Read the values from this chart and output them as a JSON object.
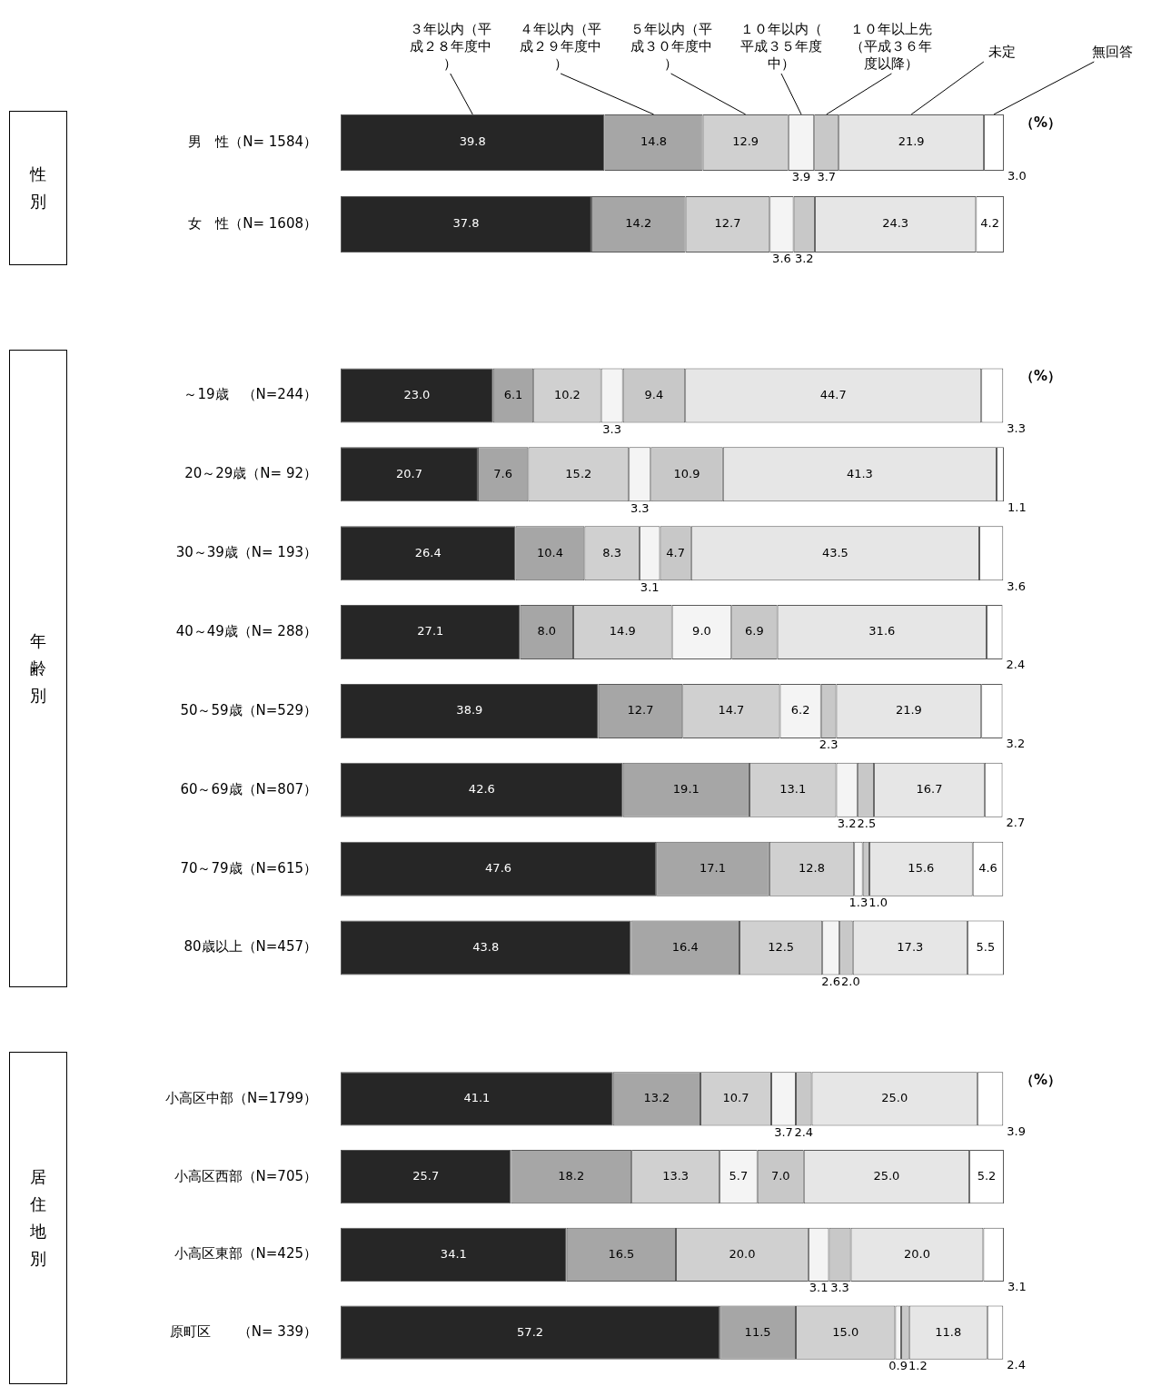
{
  "chart_data": [
    {
      "type": "bar",
      "orientation": "horizontal",
      "stacked": true,
      "legend": "top",
      "tick_labels": "y",
      "ylabel": "性別",
      "annotations": [
        "（%）"
      ],
      "categories": [
        "男　性（N= 1584）",
        "女　性（N= 1608）"
      ],
      "series": [
        {
          "name": "３年以内（平成２８年度中）",
          "color": "#262626",
          "values": [
            39.8,
            37.8
          ],
          "value_labels": [
            "39.8",
            "37.8"
          ]
        },
        {
          "name": "４年以内（平成２９年度中）",
          "color": "#a6a6a6",
          "values": [
            14.8,
            14.2
          ],
          "value_labels": [
            "14.8",
            "14.2"
          ]
        },
        {
          "name": "５年以内（平成３０年度中）",
          "color": "#d0d0d0",
          "values": [
            12.9,
            12.7
          ],
          "value_labels": [
            "12.9",
            "12.7"
          ]
        },
        {
          "name": "１０年以内（平成３５年度中）",
          "color": "#f4f4f4",
          "values": [
            3.9,
            3.6
          ],
          "value_labels": [
            "3.9",
            "3.6"
          ]
        },
        {
          "name": "１０年以上先（平成３６年度以降）",
          "color": "#c8c8c8",
          "values": [
            3.7,
            3.2
          ],
          "value_labels": [
            "3.7",
            "3.2"
          ]
        },
        {
          "name": "未定",
          "color": "#e6e6e6",
          "values": [
            21.9,
            24.3
          ],
          "value_labels": [
            "21.9",
            "24.3"
          ]
        },
        {
          "name": "無回答",
          "color": "#ffffff",
          "values": [
            3.0,
            4.2
          ],
          "value_labels": [
            "3.0",
            "4.2"
          ]
        }
      ]
    },
    {
      "type": "bar",
      "orientation": "horizontal",
      "stacked": true,
      "tick_labels": "y",
      "ylabel": "年齢別",
      "annotations": [
        "（%）"
      ],
      "categories": [
        "～19歳　（N=244）",
        "20～29歳（N= 92）",
        "30～39歳（N= 193）",
        "40～49歳（N= 288）",
        "50～59歳（N=529）",
        "60～69歳（N=807）",
        "70～79歳（N=615）",
        "80歳以上（N=457）"
      ],
      "series": [
        {
          "color": "#262626",
          "values": [
            23.0,
            20.7,
            26.4,
            27.1,
            38.9,
            42.6,
            47.6,
            43.8
          ],
          "value_labels": [
            "23.0",
            "20.7",
            "26.4",
            "27.1",
            "38.9",
            "42.6",
            "47.6",
            "43.8"
          ]
        },
        {
          "color": "#a6a6a6",
          "values": [
            6.1,
            7.6,
            10.4,
            8.0,
            12.7,
            19.1,
            17.1,
            16.4
          ],
          "value_labels": [
            "6.1",
            "7.6",
            "10.4",
            "8.0",
            "12.7",
            "19.1",
            "17.1",
            "16.4"
          ]
        },
        {
          "color": "#d0d0d0",
          "values": [
            10.2,
            15.2,
            8.3,
            14.9,
            14.7,
            13.1,
            12.8,
            12.5
          ],
          "value_labels": [
            "10.2",
            "15.2",
            "8.3",
            "14.9",
            "14.7",
            "13.1",
            "12.8",
            "12.5"
          ]
        },
        {
          "color": "#f4f4f4",
          "values": [
            3.3,
            3.3,
            3.1,
            9.0,
            6.2,
            3.2,
            1.3,
            2.6
          ],
          "value_labels": [
            "3.3",
            "3.3",
            "3.1",
            "9.0",
            "6.2",
            "3.2",
            "1.3",
            "2.6"
          ]
        },
        {
          "color": "#c8c8c8",
          "values": [
            9.4,
            10.9,
            4.7,
            6.9,
            2.3,
            2.5,
            1.0,
            2.0
          ],
          "value_labels": [
            "9.4",
            "10.9",
            "4.7",
            "6.9",
            "2.3",
            "2.5",
            "1.0",
            "2.0"
          ]
        },
        {
          "color": "#e6e6e6",
          "values": [
            44.7,
            41.3,
            43.5,
            31.6,
            21.9,
            16.7,
            15.6,
            17.3
          ],
          "value_labels": [
            "44.7",
            "41.3",
            "43.5",
            "31.6",
            "21.9",
            "16.7",
            "15.6",
            "17.3"
          ]
        },
        {
          "color": "#ffffff",
          "values": [
            3.3,
            1.1,
            3.6,
            2.4,
            3.2,
            2.7,
            4.6,
            5.5
          ],
          "value_labels": [
            "3.3",
            "1.1",
            "3.6",
            "2.4",
            "3.2",
            "2.7",
            "4.6",
            "5.5"
          ]
        }
      ]
    },
    {
      "type": "bar",
      "orientation": "horizontal",
      "stacked": true,
      "tick_labels": "y",
      "ylabel": "居住地別",
      "annotations": [
        "（%）"
      ],
      "categories": [
        "小高区中部（N=1799）",
        "小高区西部（N=705）",
        "小高区東部（N=425）",
        "原町区　　（N= 339）"
      ],
      "series": [
        {
          "color": "#262626",
          "values": [
            41.1,
            25.7,
            34.1,
            57.2
          ],
          "value_labels": [
            "41.1",
            "25.7",
            "34.1",
            "57.2"
          ]
        },
        {
          "color": "#a6a6a6",
          "values": [
            13.2,
            18.2,
            16.5,
            11.5
          ],
          "value_labels": [
            "13.2",
            "18.2",
            "16.5",
            "11.5"
          ]
        },
        {
          "color": "#d0d0d0",
          "values": [
            10.7,
            13.3,
            20.0,
            15.0
          ],
          "value_labels": [
            "10.7",
            "13.3",
            "20.0",
            "15.0"
          ]
        },
        {
          "color": "#f4f4f4",
          "values": [
            3.7,
            5.7,
            3.1,
            0.9
          ],
          "value_labels": [
            "3.7",
            "5.7",
            "3.1",
            "0.9"
          ]
        },
        {
          "color": "#c8c8c8",
          "values": [
            2.4,
            7.0,
            3.3,
            1.2
          ],
          "value_labels": [
            "2.4",
            "7.0",
            "3.3",
            "1.2"
          ]
        },
        {
          "color": "#e6e6e6",
          "values": [
            25.0,
            25.0,
            20.0,
            11.8
          ],
          "value_labels": [
            "25.0",
            "25.0",
            "20.0",
            "11.8"
          ]
        },
        {
          "color": "#ffffff",
          "values": [
            3.9,
            5.2,
            3.1,
            2.4
          ],
          "value_labels": [
            "3.9",
            "5.2",
            "3.1",
            "2.4"
          ]
        }
      ]
    }
  ]
}
